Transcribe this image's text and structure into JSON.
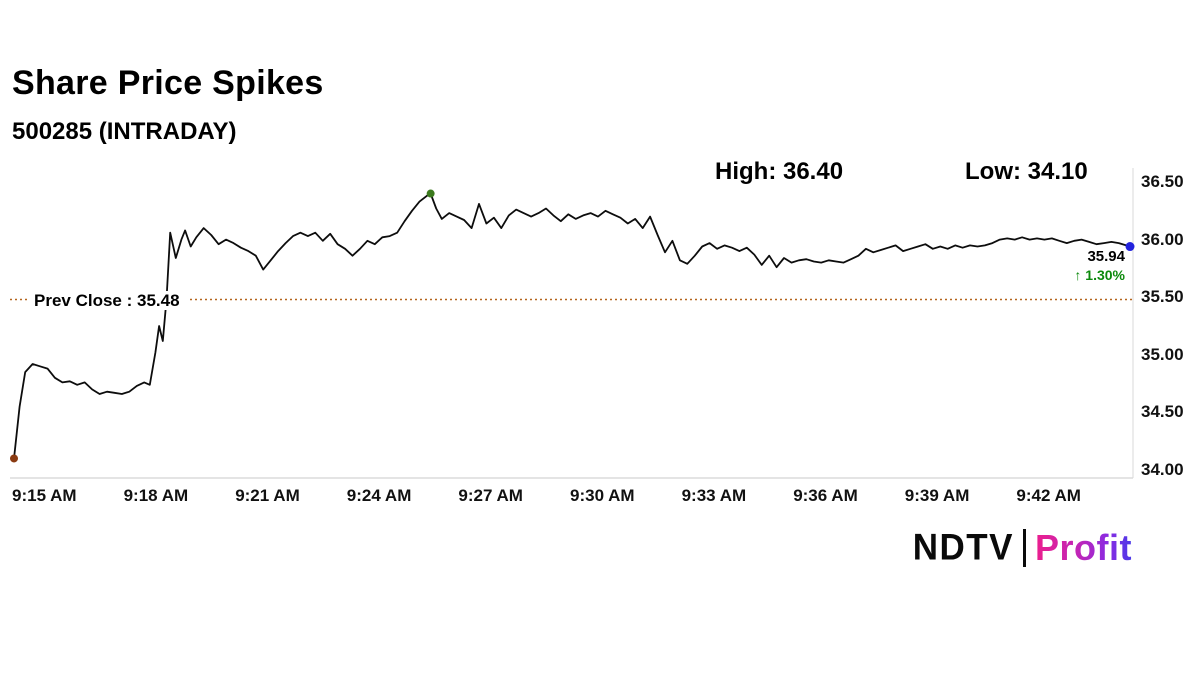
{
  "title": "Share Price Spikes",
  "subtitle": "500285 (INTRADAY)",
  "stats": {
    "high": "High: 36.40",
    "low": "Low: 34.10"
  },
  "prev_close_label": "Prev Close : 35.48",
  "annotation": {
    "price": "35.94",
    "arrow": "↑",
    "change": "1.30%"
  },
  "logo": {
    "ndtv": "NDTV",
    "separator": "|",
    "profit": "Profit"
  },
  "colors": {
    "line": "#0d0d0d",
    "prev_close_line": "#b5651d",
    "start_dot": "#8a3b12",
    "peak_dot": "#3c7a1e",
    "end_dot": "#2222dd",
    "change_up": "#0c8a0c",
    "axis": "#c9c9c9",
    "profit_gradient_from": "#ec1e8e",
    "profit_gradient_to": "#4a3ae8"
  },
  "chart_data": {
    "type": "line",
    "title": "Share Price Spikes",
    "instrument": "500285",
    "session": "INTRADAY",
    "high": 36.4,
    "low": 34.1,
    "prev_close": 35.48,
    "last": 35.94,
    "change_pct": 1.3,
    "x_start_time": "9:15 AM",
    "x_tick_interval_min": 3,
    "x_minutes_domain": [
      0,
      30
    ],
    "x_ticks": [
      "9:15 AM",
      "9:18 AM",
      "9:21 AM",
      "9:24 AM",
      "9:27 AM",
      "9:30 AM",
      "9:33 AM",
      "9:36 AM",
      "9:39 AM",
      "9:42 AM"
    ],
    "y_ticks": [
      36.5,
      36.0,
      35.5,
      35.0,
      34.5,
      34.0
    ],
    "ylim": [
      34.0,
      36.5
    ],
    "grid": false,
    "legend": false,
    "points": [
      [
        0.0,
        34.1
      ],
      [
        0.15,
        34.55
      ],
      [
        0.3,
        34.85
      ],
      [
        0.5,
        34.92
      ],
      [
        0.7,
        34.9
      ],
      [
        0.9,
        34.88
      ],
      [
        1.1,
        34.8
      ],
      [
        1.3,
        34.76
      ],
      [
        1.5,
        34.77
      ],
      [
        1.7,
        34.74
      ],
      [
        1.9,
        34.76
      ],
      [
        2.1,
        34.7
      ],
      [
        2.3,
        34.66
      ],
      [
        2.5,
        34.68
      ],
      [
        2.7,
        34.67
      ],
      [
        2.9,
        34.66
      ],
      [
        3.1,
        34.68
      ],
      [
        3.3,
        34.73
      ],
      [
        3.5,
        34.76
      ],
      [
        3.65,
        34.74
      ],
      [
        3.8,
        35.02
      ],
      [
        3.9,
        35.25
      ],
      [
        4.0,
        35.12
      ],
      [
        4.1,
        35.48
      ],
      [
        4.2,
        36.06
      ],
      [
        4.35,
        35.84
      ],
      [
        4.5,
        36.0
      ],
      [
        4.6,
        36.08
      ],
      [
        4.75,
        35.94
      ],
      [
        4.9,
        36.02
      ],
      [
        5.1,
        36.1
      ],
      [
        5.3,
        36.04
      ],
      [
        5.5,
        35.96
      ],
      [
        5.7,
        36.0
      ],
      [
        5.9,
        35.97
      ],
      [
        6.1,
        35.93
      ],
      [
        6.3,
        35.9
      ],
      [
        6.5,
        35.86
      ],
      [
        6.7,
        35.74
      ],
      [
        6.9,
        35.82
      ],
      [
        7.1,
        35.9
      ],
      [
        7.3,
        35.97
      ],
      [
        7.5,
        36.03
      ],
      [
        7.7,
        36.06
      ],
      [
        7.9,
        36.03
      ],
      [
        8.1,
        36.06
      ],
      [
        8.3,
        35.99
      ],
      [
        8.5,
        36.05
      ],
      [
        8.7,
        35.96
      ],
      [
        8.9,
        35.92
      ],
      [
        9.1,
        35.86
      ],
      [
        9.3,
        35.92
      ],
      [
        9.5,
        35.99
      ],
      [
        9.7,
        35.96
      ],
      [
        9.9,
        36.02
      ],
      [
        10.1,
        36.03
      ],
      [
        10.3,
        36.06
      ],
      [
        10.5,
        36.16
      ],
      [
        10.7,
        36.25
      ],
      [
        10.9,
        36.33
      ],
      [
        11.1,
        36.38
      ],
      [
        11.2,
        36.4
      ],
      [
        11.35,
        36.27
      ],
      [
        11.5,
        36.18
      ],
      [
        11.7,
        36.23
      ],
      [
        11.9,
        36.2
      ],
      [
        12.1,
        36.17
      ],
      [
        12.3,
        36.1
      ],
      [
        12.5,
        36.31
      ],
      [
        12.7,
        36.14
      ],
      [
        12.9,
        36.19
      ],
      [
        13.1,
        36.1
      ],
      [
        13.3,
        36.21
      ],
      [
        13.5,
        36.26
      ],
      [
        13.7,
        36.23
      ],
      [
        13.9,
        36.2
      ],
      [
        14.1,
        36.23
      ],
      [
        14.3,
        36.27
      ],
      [
        14.5,
        36.21
      ],
      [
        14.7,
        36.16
      ],
      [
        14.9,
        36.22
      ],
      [
        15.1,
        36.18
      ],
      [
        15.3,
        36.21
      ],
      [
        15.5,
        36.23
      ],
      [
        15.7,
        36.2
      ],
      [
        15.9,
        36.25
      ],
      [
        16.1,
        36.22
      ],
      [
        16.3,
        36.19
      ],
      [
        16.5,
        36.14
      ],
      [
        16.7,
        36.18
      ],
      [
        16.9,
        36.1
      ],
      [
        17.1,
        36.2
      ],
      [
        17.3,
        36.04
      ],
      [
        17.5,
        35.89
      ],
      [
        17.7,
        35.99
      ],
      [
        17.9,
        35.82
      ],
      [
        18.1,
        35.79
      ],
      [
        18.3,
        35.86
      ],
      [
        18.5,
        35.94
      ],
      [
        18.7,
        35.97
      ],
      [
        18.9,
        35.92
      ],
      [
        19.1,
        35.95
      ],
      [
        19.3,
        35.93
      ],
      [
        19.5,
        35.9
      ],
      [
        19.7,
        35.93
      ],
      [
        19.9,
        35.87
      ],
      [
        20.1,
        35.78
      ],
      [
        20.3,
        35.86
      ],
      [
        20.5,
        35.76
      ],
      [
        20.7,
        35.84
      ],
      [
        20.9,
        35.8
      ],
      [
        21.1,
        35.82
      ],
      [
        21.3,
        35.83
      ],
      [
        21.5,
        35.81
      ],
      [
        21.7,
        35.8
      ],
      [
        21.9,
        35.82
      ],
      [
        22.1,
        35.81
      ],
      [
        22.3,
        35.8
      ],
      [
        22.5,
        35.83
      ],
      [
        22.7,
        35.86
      ],
      [
        22.9,
        35.92
      ],
      [
        23.1,
        35.89
      ],
      [
        23.3,
        35.91
      ],
      [
        23.5,
        35.93
      ],
      [
        23.7,
        35.95
      ],
      [
        23.9,
        35.9
      ],
      [
        24.1,
        35.92
      ],
      [
        24.3,
        35.94
      ],
      [
        24.5,
        35.96
      ],
      [
        24.7,
        35.92
      ],
      [
        24.9,
        35.94
      ],
      [
        25.1,
        35.92
      ],
      [
        25.3,
        35.95
      ],
      [
        25.5,
        35.93
      ],
      [
        25.7,
        35.95
      ],
      [
        25.9,
        35.94
      ],
      [
        26.1,
        35.95
      ],
      [
        26.3,
        35.97
      ],
      [
        26.5,
        36.0
      ],
      [
        26.7,
        36.01
      ],
      [
        26.9,
        36.0
      ],
      [
        27.1,
        36.02
      ],
      [
        27.3,
        36.0
      ],
      [
        27.5,
        36.01
      ],
      [
        27.7,
        36.0
      ],
      [
        27.9,
        36.01
      ],
      [
        28.1,
        35.99
      ],
      [
        28.3,
        35.97
      ],
      [
        28.5,
        35.99
      ],
      [
        28.7,
        36.0
      ],
      [
        28.9,
        35.98
      ],
      [
        29.1,
        35.96
      ],
      [
        29.3,
        35.97
      ],
      [
        29.5,
        35.98
      ],
      [
        29.7,
        35.97
      ],
      [
        30.0,
        35.94
      ]
    ]
  }
}
